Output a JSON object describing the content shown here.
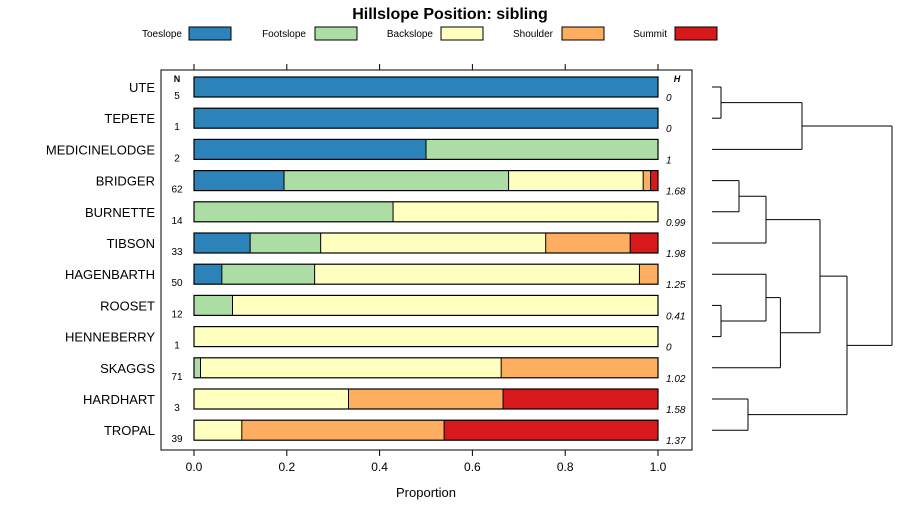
{
  "chart_data": {
    "type": "stacked-bar",
    "title": "Hillslope Position: sibling",
    "xlabel": "Proportion",
    "xlim": [
      0,
      1
    ],
    "xticks": [
      "0.0",
      "0.2",
      "0.4",
      "0.6",
      "0.8",
      "1.0"
    ],
    "xtick_values": [
      0,
      0.2,
      0.4,
      0.6,
      0.8,
      1.0
    ],
    "n_header": "N",
    "h_header": "H",
    "legend_position": "top",
    "categories": [
      "Toeslope",
      "Footslope",
      "Backslope",
      "Shoulder",
      "Summit"
    ],
    "colors": [
      "#2b83ba",
      "#abdda4",
      "#ffffbf",
      "#fdae61",
      "#d7191c"
    ],
    "rows": [
      {
        "name": "UTE",
        "n": "5",
        "h": "0",
        "values": [
          1.0,
          0,
          0,
          0,
          0
        ]
      },
      {
        "name": "TEPETE",
        "n": "1",
        "h": "0",
        "values": [
          1.0,
          0,
          0,
          0,
          0
        ]
      },
      {
        "name": "MEDICINELODGE",
        "n": "2",
        "h": "1",
        "values": [
          0.5,
          0.5,
          0,
          0,
          0
        ]
      },
      {
        "name": "BRIDGER",
        "n": "62",
        "h": "1.68",
        "values": [
          0.194,
          0.484,
          0.29,
          0.016,
          0.016
        ]
      },
      {
        "name": "BURNETTE",
        "n": "14",
        "h": "0.99",
        "values": [
          0,
          0.429,
          0.571,
          0,
          0
        ]
      },
      {
        "name": "TIBSON",
        "n": "33",
        "h": "1.98",
        "values": [
          0.121,
          0.152,
          0.485,
          0.182,
          0.06
        ]
      },
      {
        "name": "HAGENBARTH",
        "n": "50",
        "h": "1.25",
        "values": [
          0.06,
          0.2,
          0.7,
          0.04,
          0
        ]
      },
      {
        "name": "ROOSET",
        "n": "12",
        "h": "0.41",
        "values": [
          0,
          0.083,
          0.917,
          0,
          0
        ]
      },
      {
        "name": "HENNEBERRY",
        "n": "1",
        "h": "0",
        "values": [
          0,
          0,
          1.0,
          0,
          0
        ]
      },
      {
        "name": "SKAGGS",
        "n": "71",
        "h": "1.02",
        "values": [
          0,
          0.014,
          0.648,
          0.338,
          0
        ]
      },
      {
        "name": "HARDHART",
        "n": "3",
        "h": "1.58",
        "values": [
          0,
          0,
          0.333,
          0.333,
          0.334
        ]
      },
      {
        "name": "TROPAL",
        "n": "39",
        "h": "1.37",
        "values": [
          0,
          0,
          0.103,
          0.436,
          0.461
        ]
      }
    ],
    "dendrogram": {
      "merges": [
        {
          "a": "UTE",
          "b": "TEPETE",
          "height": 0.05
        },
        {
          "a": "HENNEBERRY",
          "b": "ROOSET",
          "height": 0.05
        },
        {
          "a": "BURNETTE",
          "b": "BRIDGER",
          "height": 0.15
        },
        {
          "a": "HARDHART",
          "b": "TROPAL",
          "height": 0.2
        },
        {
          "a": "ROOSET+HENNEBERRY",
          "b": "HAGENBARTH",
          "height": 0.3
        },
        {
          "a": "BRIDGER+BURNETTE",
          "b": "TIBSON",
          "height": 0.3
        },
        {
          "a": "HAGENBARTH+ROOSET+HENNEBERRY",
          "b": "SKAGGS",
          "height": 0.38
        },
        {
          "a": "UTE+TEPETE",
          "b": "MEDICINELODGE",
          "height": 0.5
        },
        {
          "a": "BRIDGER+BURNETTE+TIBSON",
          "b": "HAGENBARTH+ROOSET+HENNEBERRY+SKAGGS",
          "height": 0.6
        },
        {
          "a": "MIDDLE",
          "b": "HARDHART+TROPAL",
          "height": 0.75
        },
        {
          "a": "TOP",
          "b": "REST",
          "height": 1.0
        }
      ]
    }
  }
}
